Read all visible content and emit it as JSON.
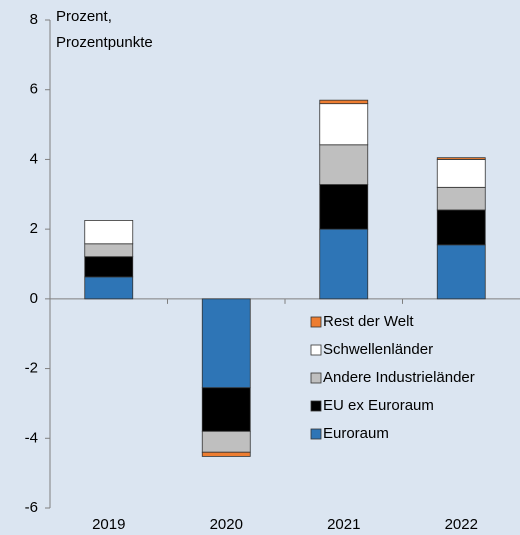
{
  "chart_data": {
    "type": "bar",
    "stacked": true,
    "y_label": [
      "Prozent,",
      "Prozentpunkte"
    ],
    "categories": [
      "2019",
      "2020",
      "2021",
      "2022"
    ],
    "series": [
      {
        "name": "Euroraum",
        "color": "#2e75b6",
        "values": [
          0.63,
          -2.55,
          2.0,
          1.55
        ]
      },
      {
        "name": "EU ex Euroraum",
        "color": "#000000",
        "values": [
          0.58,
          -1.25,
          1.28,
          1.0
        ]
      },
      {
        "name": "Andere Industrieländer",
        "color": "#bfbfbf",
        "values": [
          0.37,
          -0.6,
          1.14,
          0.65
        ]
      },
      {
        "name": "Schwellenländer",
        "color": "#ffffff",
        "values": [
          0.67,
          0,
          1.18,
          0.8
        ]
      },
      {
        "name": "Rest der Welt",
        "color": "#ed7d31",
        "values": [
          0,
          -0.12,
          0.1,
          0.05
        ]
      }
    ],
    "ylim": [
      -6,
      8
    ],
    "yticks": [
      -6,
      -4,
      -2,
      0,
      2,
      4,
      6,
      8
    ]
  }
}
